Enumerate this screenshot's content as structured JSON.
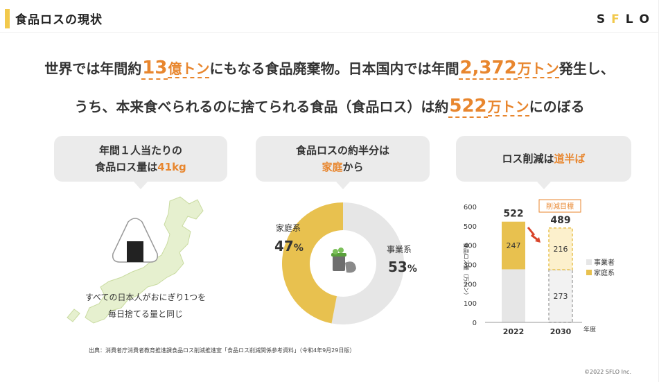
{
  "header": {
    "title": "食品ロスの現状",
    "logo_letters": [
      "S",
      "F",
      "L",
      "O"
    ],
    "logo_colors": [
      "#222222",
      "#f2c94c",
      "#222222",
      "#222222"
    ]
  },
  "headline1": {
    "a": "世界では年間約",
    "n1": "13",
    "u1": "億トン",
    "b": "にもなる食品廃棄物。日本国内では年間",
    "n2": "2,372",
    "u2": "万トン",
    "c": "発生し、"
  },
  "headline2": {
    "a": "うち、本来食べられるのに捨てられる食品（食品ロス）は約",
    "n": "522",
    "u": "万トン",
    "b": "にのぼる"
  },
  "panel1": {
    "line1": "年間１人当たりの",
    "line2_a": "食品ロス量は",
    "line2_b": "41kg",
    "text1": "すべての日本人がおにぎり1つを",
    "text2": "毎日捨てる量と同じ"
  },
  "panel2": {
    "line1": "食品ロスの約半分は",
    "line2_a": "家庭",
    "line2_b": "から"
  },
  "panel3": {
    "line1_a": "ロス削減は",
    "line1_b": "道半ば"
  },
  "colors": {
    "accent": "#e8862e",
    "household": "#e8c14f",
    "business": "#e6e6e6",
    "target_fill": "#fcf0cc",
    "bubble": "#ebebeb"
  },
  "chart_data": [
    {
      "type": "pie",
      "donut": true,
      "slices": [
        {
          "name": "家庭系",
          "value": 47,
          "label": "47",
          "unit": "%",
          "color": "#e8c14f"
        },
        {
          "name": "事業系",
          "value": 53,
          "label": "53",
          "unit": "%",
          "color": "#e6e6e6"
        }
      ],
      "center_icon": "trash-icon"
    },
    {
      "type": "bar",
      "stacked": true,
      "categories": [
        "2022",
        "2030"
      ],
      "series": [
        {
          "name": "事業者",
          "values": [
            275,
            273
          ],
          "color": "#e6e6e6",
          "value_labels": [
            "",
            "273"
          ]
        },
        {
          "name": "家庭系",
          "values": [
            247,
            216
          ],
          "color": "#e8c14f",
          "value_labels": [
            "247",
            "216"
          ]
        }
      ],
      "totals": [
        "522",
        "489"
      ],
      "target_label": "削減目標",
      "target_category": "2030",
      "ylabel": "食品ロス量（万トン）",
      "xlabel": "年度",
      "yticks": [
        0,
        100,
        200,
        300,
        400,
        500,
        600
      ],
      "ylim": [
        0,
        600
      ],
      "legend_position": "right"
    }
  ],
  "footer": {
    "source": "出典：消費者庁消費者教育推進課食品ロス削減推進室「食品ロス削減関係参考資料」（令和4年9月29日版）",
    "copyright": "©2022 SFLO Inc."
  }
}
